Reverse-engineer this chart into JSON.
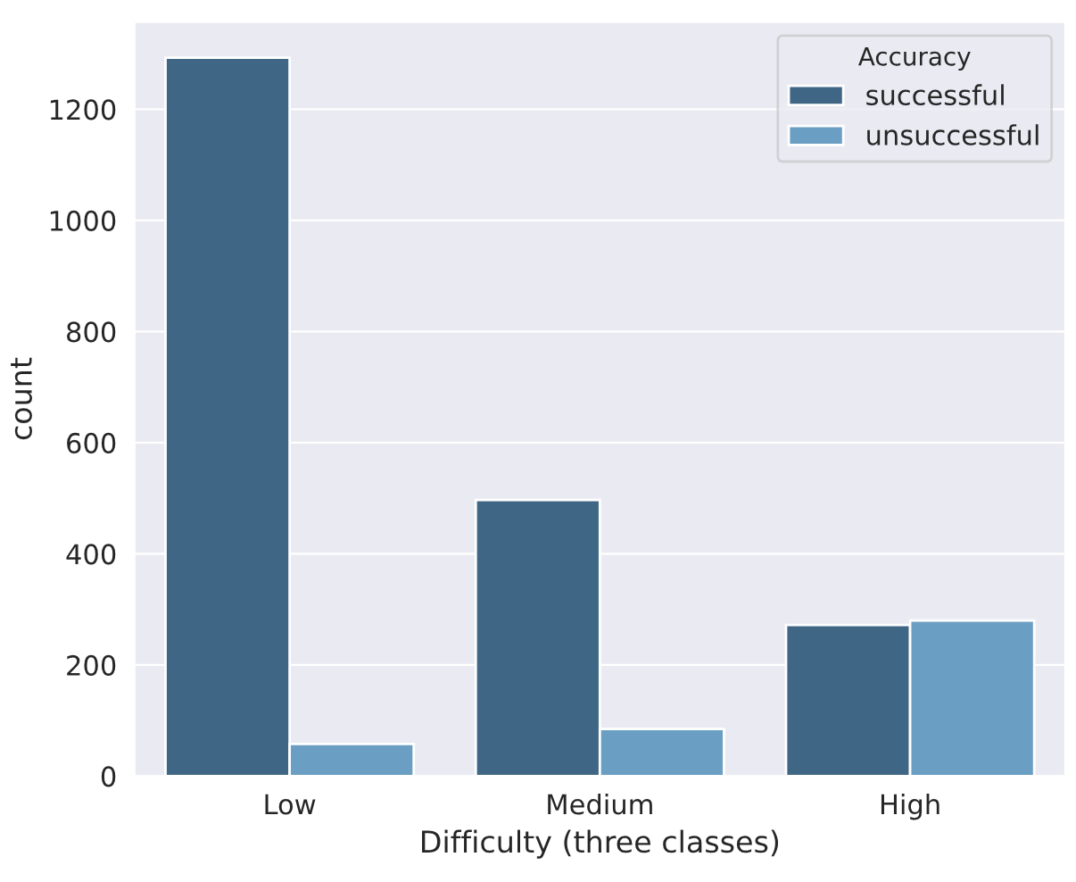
{
  "chart_data": {
    "type": "bar",
    "xlabel": "Difficulty (three classes)",
    "ylabel": "count",
    "legend_title": "Accuracy",
    "categories": [
      "Low",
      "Medium",
      "High"
    ],
    "series": [
      {
        "name": "successful",
        "color": "#3f6785",
        "values": [
          1293,
          497,
          272
        ]
      },
      {
        "name": "unsuccessful",
        "color": "#6a9ec2",
        "values": [
          58,
          85,
          280
        ]
      }
    ],
    "ylim": [
      0,
      1357
    ],
    "yticks": [
      0,
      200,
      400,
      600,
      800,
      1000,
      1200
    ],
    "grid": "y",
    "legend": "top right"
  }
}
